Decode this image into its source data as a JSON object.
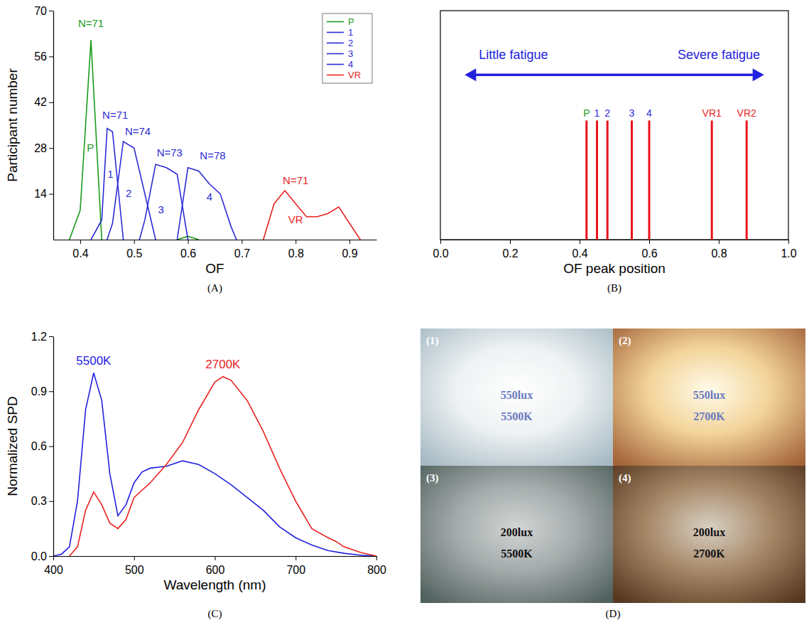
{
  "chart_data": [
    {
      "type": "line",
      "caption": "(A)",
      "x_label": "OF",
      "y_label": "Participant number",
      "xlim": [
        0.35,
        0.95
      ],
      "xticks": [
        0.4,
        0.5,
        0.6,
        0.7,
        0.8,
        0.9
      ],
      "ylim": [
        0,
        70
      ],
      "yticks": [
        14,
        28,
        42,
        56,
        70
      ],
      "grid": false,
      "legend": "top-right",
      "series": [
        {
          "name": "P",
          "color": "#1a9a1a",
          "x": [
            0.38,
            0.4,
            0.42,
            0.44,
            0.5,
            0.58,
            0.6,
            0.62
          ],
          "values": [
            0,
            9,
            61,
            0,
            null,
            0,
            1,
            0
          ]
        },
        {
          "name": "1",
          "color": "#2b2bd6",
          "x": [
            0.42,
            0.44,
            0.45,
            0.46,
            0.48
          ],
          "values": [
            0,
            6,
            34,
            33,
            0
          ]
        },
        {
          "name": "2",
          "color": "#2b2bd6",
          "x": [
            0.45,
            0.46,
            0.48,
            0.5,
            0.54
          ],
          "values": [
            0,
            5,
            30,
            28,
            0
          ]
        },
        {
          "name": "3",
          "color": "#2b2bd6",
          "x": [
            0.51,
            0.52,
            0.54,
            0.56,
            0.58,
            0.6
          ],
          "values": [
            0,
            6,
            23,
            22,
            20,
            0
          ]
        },
        {
          "name": "4",
          "color": "#2b2bd6",
          "x": [
            0.58,
            0.6,
            0.62,
            0.64,
            0.66,
            0.68,
            0.69
          ],
          "values": [
            0,
            22,
            21,
            17,
            14,
            4,
            0
          ]
        },
        {
          "name": "VR",
          "color": "#e8241f",
          "x": [
            0.74,
            0.76,
            0.78,
            0.8,
            0.82,
            0.84,
            0.86,
            0.88,
            0.9,
            0.92
          ],
          "values": [
            0,
            11,
            15,
            11,
            7,
            7,
            8,
            10,
            5,
            0
          ]
        }
      ],
      "annotations": [
        {
          "text": "N=71",
          "x": 0.42,
          "y": 65,
          "color": "#1a9a1a"
        },
        {
          "text": "N=71",
          "x": 0.465,
          "y": 37,
          "color": "#2b2bd6"
        },
        {
          "text": "N=74",
          "x": 0.507,
          "y": 32,
          "color": "#2b2bd6"
        },
        {
          "text": "N=73",
          "x": 0.566,
          "y": 25.5,
          "color": "#2b2bd6"
        },
        {
          "text": "N=78",
          "x": 0.646,
          "y": 24.5,
          "color": "#2b2bd6"
        },
        {
          "text": "N=71",
          "x": 0.8,
          "y": 17,
          "color": "#e8241f"
        },
        {
          "text": "P",
          "x": 0.419,
          "y": 27,
          "color": "#1a9a1a"
        },
        {
          "text": "1",
          "x": 0.456,
          "y": 19,
          "color": "#2b2bd6"
        },
        {
          "text": "2",
          "x": 0.49,
          "y": 13,
          "color": "#2b2bd6"
        },
        {
          "text": "3",
          "x": 0.55,
          "y": 8,
          "color": "#2b2bd6"
        },
        {
          "text": "4",
          "x": 0.64,
          "y": 12,
          "color": "#2b2bd6"
        },
        {
          "text": "VR",
          "x": 0.8,
          "y": 5,
          "color": "#e8241f"
        }
      ]
    },
    {
      "type": "event",
      "caption": "(B)",
      "x_label": "OF peak position",
      "xlim": [
        0,
        1
      ],
      "xticks": [
        {
          "value": 0,
          "label": "0.0"
        },
        0.2,
        0.4,
        0.6,
        0.8,
        {
          "value": 1,
          "label": "1.0"
        }
      ],
      "tick_labels": "x",
      "grid": false,
      "categories": [
        "P",
        "1",
        "2",
        "3",
        "4",
        "VR1",
        "VR2"
      ],
      "values": [
        0.42,
        0.45,
        0.48,
        0.55,
        0.6,
        0.78,
        0.88
      ],
      "color": "#e8141a",
      "colors": [
        "#1a9a1a",
        "#2b2bd6",
        "#2b2bd6",
        "#2b2bd6",
        "#2b2bd6",
        "#e8241f",
        "#e8241f"
      ],
      "annotations": [
        {
          "text": "Little fatigue",
          "x": 0.21,
          "color": "#2222dd"
        },
        {
          "text": "Severe fatigue",
          "x": 0.8,
          "color": "#2222dd"
        }
      ]
    },
    {
      "type": "line",
      "caption": "(C)",
      "x_label": "Wavelength (nm)",
      "y_label": "Normalized SPD",
      "xlim": [
        400,
        800
      ],
      "xticks": [
        400,
        500,
        600,
        700,
        800
      ],
      "ylim": [
        0,
        1.2
      ],
      "yticks": [
        {
          "value": 0,
          "label": "0.0"
        },
        0.3,
        0.6,
        0.9,
        1.2
      ],
      "grid": false,
      "series": [
        {
          "name": "5500K",
          "color": "#2020e0",
          "x": [
            400,
            410,
            420,
            430,
            440,
            450,
            460,
            470,
            480,
            490,
            500,
            510,
            520,
            540,
            560,
            580,
            600,
            620,
            640,
            660,
            680,
            700,
            720,
            740,
            760,
            780,
            800
          ],
          "values": [
            0,
            0.01,
            0.05,
            0.3,
            0.8,
            1.0,
            0.85,
            0.45,
            0.22,
            0.28,
            0.4,
            0.46,
            0.48,
            0.49,
            0.52,
            0.5,
            0.45,
            0.39,
            0.32,
            0.25,
            0.16,
            0.1,
            0.06,
            0.03,
            0.015,
            0.005,
            0
          ]
        },
        {
          "name": "2700K",
          "color": "#e8241f",
          "x": [
            420,
            430,
            440,
            450,
            460,
            470,
            480,
            490,
            500,
            520,
            540,
            560,
            580,
            600,
            610,
            620,
            640,
            660,
            680,
            700,
            720,
            740,
            750,
            760,
            780,
            800
          ],
          "values": [
            0,
            0.05,
            0.25,
            0.35,
            0.28,
            0.18,
            0.15,
            0.2,
            0.32,
            0.4,
            0.5,
            0.62,
            0.8,
            0.95,
            0.98,
            0.96,
            0.85,
            0.68,
            0.48,
            0.3,
            0.15,
            0.1,
            0.08,
            0.05,
            0.02,
            0
          ]
        }
      ]
    }
  ],
  "photo": {
    "caption": "(D)",
    "cells": [
      {
        "label": "(1)",
        "lux": "550lux",
        "cct": "5500K"
      },
      {
        "label": "(2)",
        "lux": "550lux",
        "cct": "2700K"
      },
      {
        "label": "(3)",
        "lux": "200lux",
        "cct": "5500K"
      },
      {
        "label": "(4)",
        "lux": "200lux",
        "cct": "2700K"
      }
    ]
  }
}
